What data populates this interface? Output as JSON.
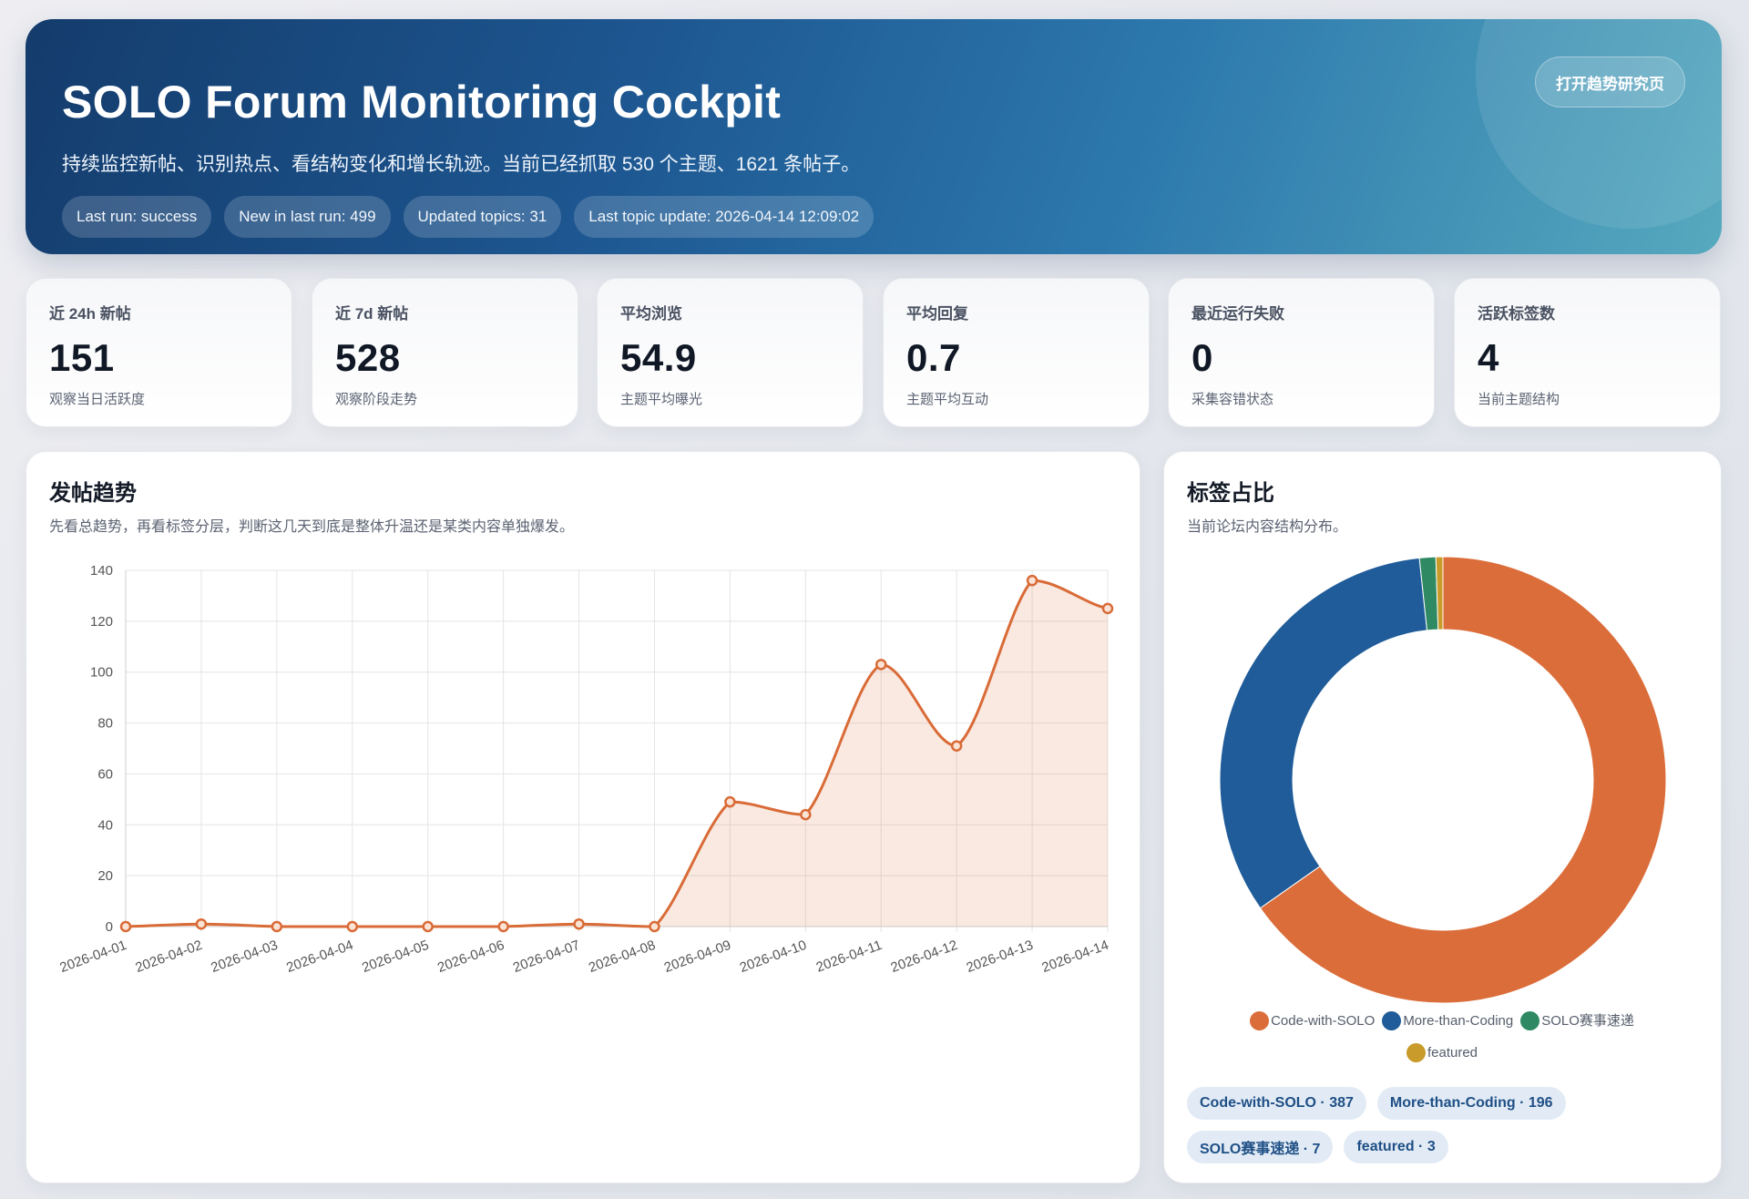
{
  "hero": {
    "title": "SOLO Forum Monitoring Cockpit",
    "subtitle": "持续监控新帖、识别热点、看结构变化和增长轨迹。当前已经抓取 530 个主题、1621 条帖子。",
    "button_label": "打开趋势研究页",
    "pills": [
      "Last run: success",
      "New in last run: 499",
      "Updated topics: 31",
      "Last topic update: 2026-04-14 12:09:02"
    ]
  },
  "stats": [
    {
      "label": "近 24h 新帖",
      "value": "151",
      "caption": "观察当日活跃度"
    },
    {
      "label": "近 7d 新帖",
      "value": "528",
      "caption": "观察阶段走势"
    },
    {
      "label": "平均浏览",
      "value": "54.9",
      "caption": "主题平均曝光"
    },
    {
      "label": "平均回复",
      "value": "0.7",
      "caption": "主题平均互动"
    },
    {
      "label": "最近运行失败",
      "value": "0",
      "caption": "采集容错状态"
    },
    {
      "label": "活跃标签数",
      "value": "4",
      "caption": "当前主题结构"
    }
  ],
  "trend_panel": {
    "title": "发帖趋势",
    "subtitle": "先看总趋势，再看标签分层，判断这几天到底是整体升温还是某类内容单独爆发。"
  },
  "tag_panel": {
    "title": "标签占比",
    "subtitle": "当前论坛内容结构分布。",
    "tags": [
      "Code-with-SOLO · 387",
      "More-than-Coding · 196",
      "SOLO赛事速递 · 7",
      "featured · 3"
    ]
  },
  "colors": {
    "line": "#d96b37",
    "fill": "rgba(217,107,55,0.15)",
    "code_with_solo": "#db6d3a",
    "more_than_coding": "#1f5c99",
    "solo_events": "#2f8a63",
    "featured": "#c89b2a"
  },
  "chart_data": [
    {
      "type": "area",
      "x": [
        "2026-04-01",
        "2026-04-02",
        "2026-04-03",
        "2026-04-04",
        "2026-04-05",
        "2026-04-06",
        "2026-04-07",
        "2026-04-08",
        "2026-04-09",
        "2026-04-10",
        "2026-04-11",
        "2026-04-12",
        "2026-04-13",
        "2026-04-14"
      ],
      "values": [
        0,
        1,
        0,
        0,
        0,
        0,
        1,
        0,
        49,
        44,
        103,
        71,
        136,
        125
      ],
      "ylim": [
        0,
        140
      ],
      "yticks": [
        0,
        20,
        40,
        60,
        80,
        100,
        120,
        140
      ],
      "grid": true
    },
    {
      "type": "pie",
      "labels": [
        "Code-with-SOLO",
        "More-than-Coding",
        "SOLO赛事速递",
        "featured"
      ],
      "values": [
        387,
        196,
        7,
        3
      ],
      "legend": "bottom"
    }
  ]
}
